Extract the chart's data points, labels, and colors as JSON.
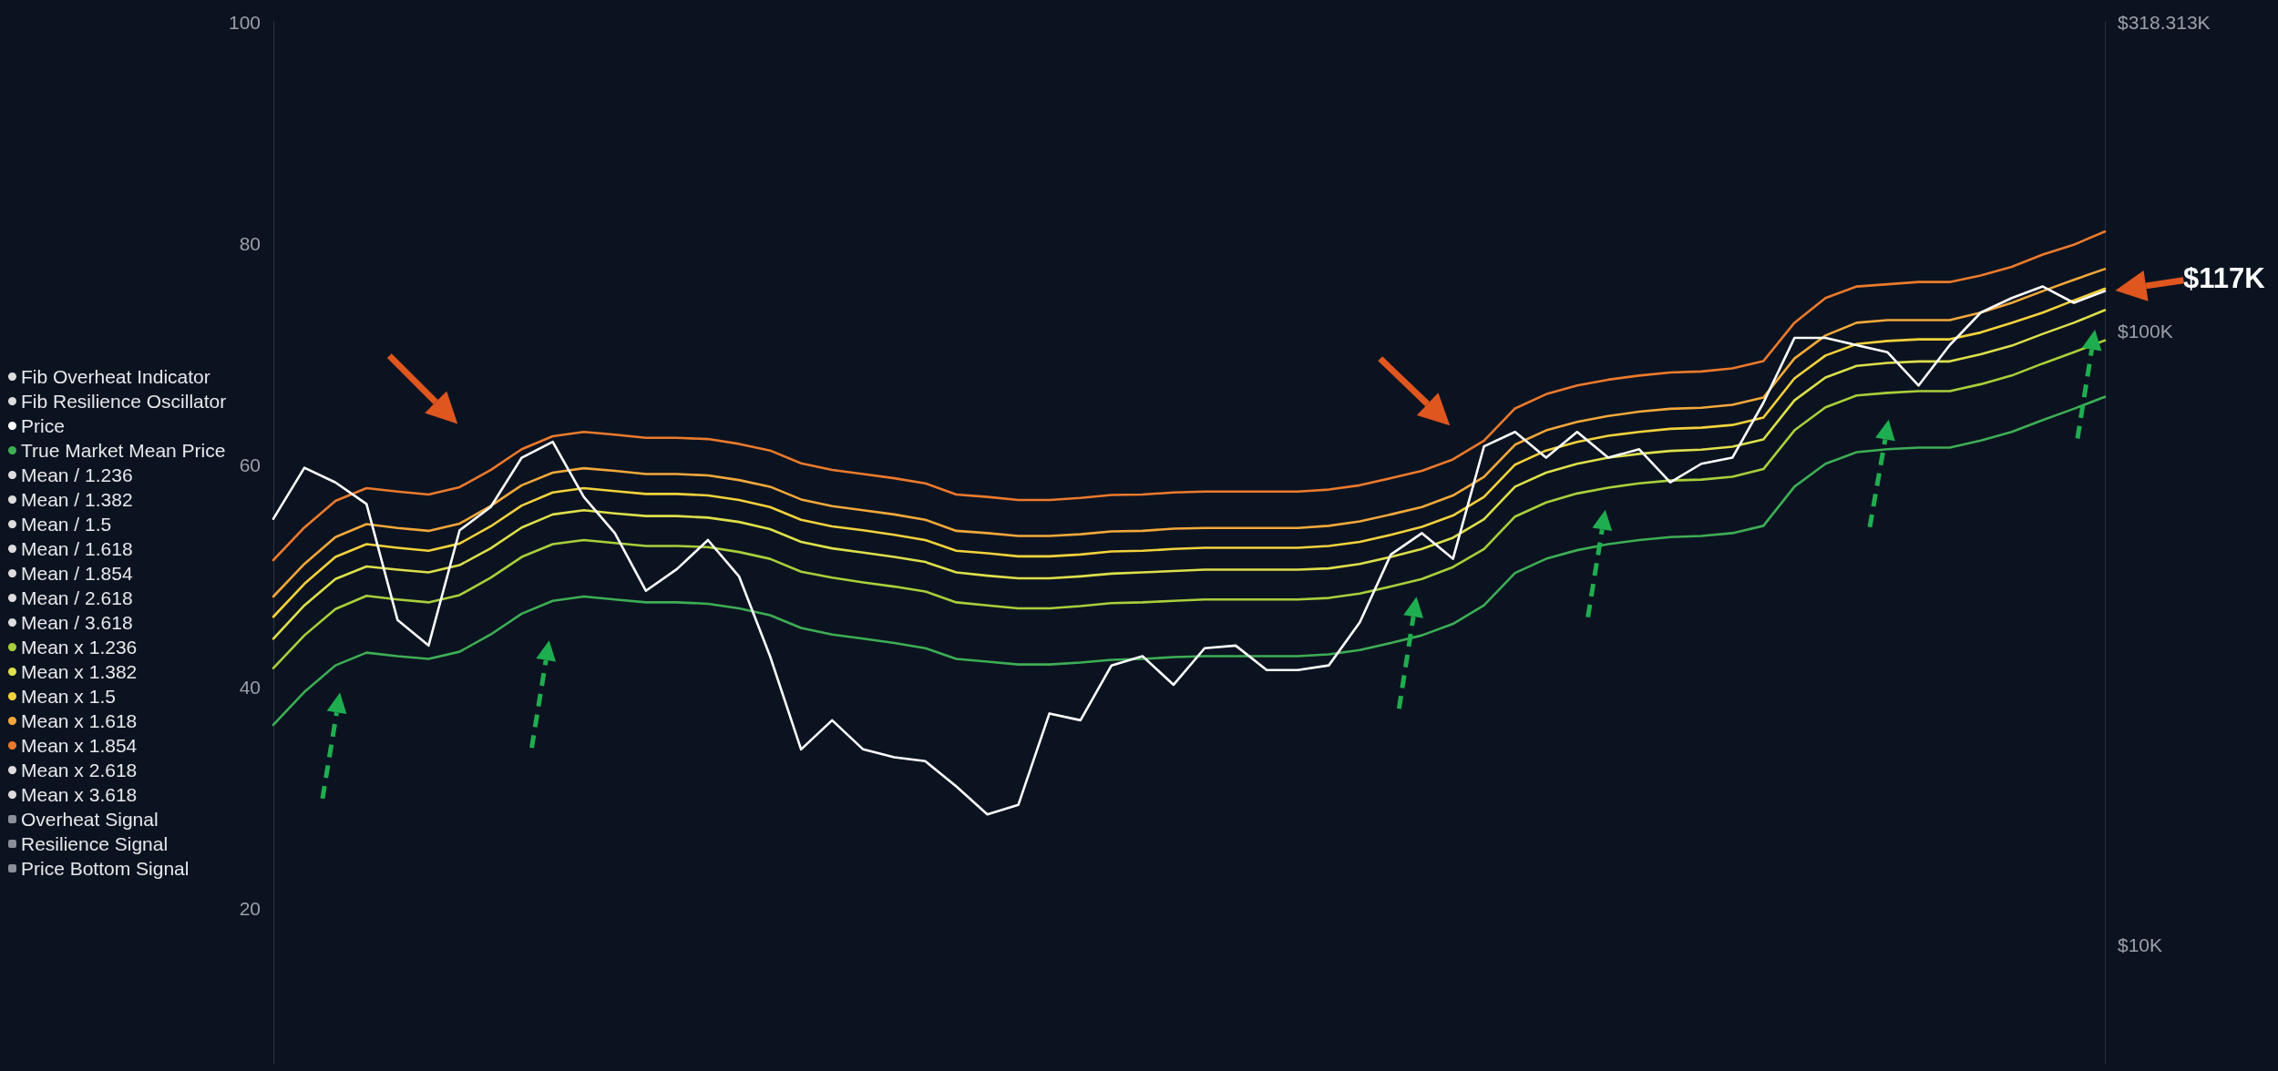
{
  "chart_data": {
    "type": "line",
    "categories": [
      null,
      null,
      null,
      null,
      null,
      null,
      null,
      null,
      null,
      null,
      null,
      null,
      null,
      null,
      null,
      null,
      null,
      null,
      null,
      null,
      null,
      null,
      null,
      null,
      null,
      null,
      null,
      null,
      null,
      null,
      null,
      null,
      null,
      null,
      null,
      null,
      null,
      null,
      null,
      null,
      null,
      null,
      null,
      null,
      null,
      null,
      null,
      null,
      null,
      null,
      null,
      null,
      null,
      null,
      null,
      null,
      null,
      null,
      null,
      null
    ],
    "ylim": [
      6,
      100
    ],
    "yticks": [
      20,
      40,
      60,
      80,
      100
    ],
    "y2lim": [
      6400,
      318313
    ],
    "y2ticks": [
      {
        "value": 10000,
        "label": "$10K"
      },
      {
        "value": 100000,
        "label": "$100K"
      },
      {
        "value": 318313,
        "label": "$318.313K"
      }
    ],
    "log": "y2",
    "legend": "left",
    "marker": "none",
    "line_style": "solid",
    "annotations": [
      "$117K"
    ],
    "series": [
      {
        "name": "Fib Overheat Indicator",
        "color": "#dddddd",
        "values": [
          null,
          null,
          null,
          null,
          null,
          null,
          null,
          null,
          null,
          null,
          null,
          null,
          null,
          null,
          null,
          null,
          null,
          null,
          null,
          null,
          null,
          null,
          null,
          null,
          null,
          null,
          null,
          null,
          null,
          null,
          null,
          null,
          null,
          null,
          null,
          null,
          null,
          null,
          null,
          null,
          null,
          null,
          null,
          null,
          null,
          null,
          null,
          null,
          null,
          null,
          null,
          null,
          null,
          null,
          null,
          null,
          null,
          null,
          null,
          null
        ]
      },
      {
        "name": "Fib Resilience Oscillator",
        "color": "#dddddd",
        "values": [
          null,
          null,
          null,
          null,
          null,
          null,
          null,
          null,
          null,
          null,
          null,
          null,
          null,
          null,
          null,
          null,
          null,
          null,
          null,
          null,
          null,
          null,
          null,
          null,
          null,
          null,
          null,
          null,
          null,
          null,
          null,
          null,
          null,
          null,
          null,
          null,
          null,
          null,
          null,
          null,
          null,
          null,
          null,
          null,
          null,
          null,
          null,
          null,
          null,
          null,
          null,
          null,
          null,
          null,
          null,
          null,
          null,
          null,
          null,
          null
        ]
      },
      {
        "name": "Price",
        "color": "#ffffff",
        "axis": "y2",
        "values": [
          49400,
          59800,
          56600,
          52200,
          33800,
          30700,
          47300,
          51600,
          62100,
          65900,
          53600,
          46800,
          37700,
          40900,
          45600,
          39800,
          29500,
          20800,
          23200,
          20800,
          20200,
          19900,
          18100,
          16300,
          16900,
          23800,
          23200,
          28500,
          29500,
          26500,
          30400,
          30700,
          28000,
          28000,
          28500,
          33500,
          43200,
          46800,
          42500,
          64800,
          68400,
          62100,
          68400,
          62100,
          64100,
          56600,
          60700,
          62100,
          76300,
          97300,
          97300,
          94700,
          92200,
          81400,
          94700,
          107000,
          113000,
          118000,
          111000,
          116000
        ]
      },
      {
        "name": "True Market Mean Price",
        "color": "#3dae55",
        "axis": "y2",
        "values": [
          22800,
          25800,
          28500,
          29900,
          29500,
          29200,
          30000,
          32000,
          34600,
          36300,
          36900,
          36500,
          36100,
          36100,
          35900,
          35300,
          34400,
          32800,
          32000,
          31500,
          31000,
          30400,
          29200,
          28900,
          28600,
          28600,
          28800,
          29100,
          29200,
          29400,
          29500,
          29500,
          29500,
          29500,
          29700,
          30200,
          31000,
          31900,
          33300,
          35700,
          40300,
          42500,
          43900,
          44900,
          45600,
          46100,
          46300,
          46800,
          48100,
          55700,
          60700,
          63400,
          64100,
          64500,
          64500,
          66200,
          68400,
          71500,
          74600,
          78000
        ]
      },
      {
        "name": "Mean / 1.236",
        "color": "#dddddd",
        "axis": "y2",
        "values": [
          null,
          null,
          null,
          null,
          null,
          null,
          null,
          null,
          null,
          null,
          null,
          null,
          null,
          null,
          null,
          null,
          null,
          null,
          null,
          null,
          null,
          null,
          null,
          null,
          null,
          null,
          null,
          null,
          null,
          null,
          null,
          null,
          null,
          null,
          null,
          null,
          null,
          null,
          null,
          null,
          null,
          null,
          null,
          null,
          null,
          null,
          null,
          null,
          null,
          null,
          null,
          null,
          null,
          null,
          null,
          null,
          null,
          null,
          null,
          null
        ]
      },
      {
        "name": "Mean / 1.382",
        "color": "#dddddd",
        "axis": "y2",
        "values": [
          null,
          null,
          null,
          null,
          null,
          null,
          null,
          null,
          null,
          null,
          null,
          null,
          null,
          null,
          null,
          null,
          null,
          null,
          null,
          null,
          null,
          null,
          null,
          null,
          null,
          null,
          null,
          null,
          null,
          null,
          null,
          null,
          null,
          null,
          null,
          null,
          null,
          null,
          null,
          null,
          null,
          null,
          null,
          null,
          null,
          null,
          null,
          null,
          null,
          null,
          null,
          null,
          null,
          null,
          null,
          null,
          null,
          null,
          null,
          null
        ]
      },
      {
        "name": "Mean / 1.5",
        "color": "#dddddd",
        "axis": "y2",
        "values": [
          null,
          null,
          null,
          null,
          null,
          null,
          null,
          null,
          null,
          null,
          null,
          null,
          null,
          null,
          null,
          null,
          null,
          null,
          null,
          null,
          null,
          null,
          null,
          null,
          null,
          null,
          null,
          null,
          null,
          null,
          null,
          null,
          null,
          null,
          null,
          null,
          null,
          null,
          null,
          null,
          null,
          null,
          null,
          null,
          null,
          null,
          null,
          null,
          null,
          null,
          null,
          null,
          null,
          null,
          null,
          null,
          null,
          null,
          null,
          null
        ]
      },
      {
        "name": "Mean / 1.618",
        "color": "#dddddd",
        "axis": "y2",
        "values": [
          null,
          null,
          null,
          null,
          null,
          null,
          null,
          null,
          null,
          null,
          null,
          null,
          null,
          null,
          null,
          null,
          null,
          null,
          null,
          null,
          null,
          null,
          null,
          null,
          null,
          null,
          null,
          null,
          null,
          null,
          null,
          null,
          null,
          null,
          null,
          null,
          null,
          null,
          null,
          null,
          null,
          null,
          null,
          null,
          null,
          null,
          null,
          null,
          null,
          null,
          null,
          null,
          null,
          null,
          null,
          null,
          null,
          null,
          null,
          null
        ]
      },
      {
        "name": "Mean / 1.854",
        "color": "#dddddd",
        "axis": "y2",
        "values": [
          null,
          null,
          null,
          null,
          null,
          null,
          null,
          null,
          null,
          null,
          null,
          null,
          null,
          null,
          null,
          null,
          null,
          null,
          null,
          null,
          null,
          null,
          null,
          null,
          null,
          null,
          null,
          null,
          null,
          null,
          null,
          null,
          null,
          null,
          null,
          null,
          null,
          null,
          null,
          null,
          null,
          null,
          null,
          null,
          null,
          null,
          null,
          null,
          null,
          null,
          null,
          null,
          null,
          null,
          null,
          null,
          null,
          null,
          null,
          null
        ]
      },
      {
        "name": "Mean / 2.618",
        "color": "#dddddd",
        "axis": "y2",
        "values": [
          null,
          null,
          null,
          null,
          null,
          null,
          null,
          null,
          null,
          null,
          null,
          null,
          null,
          null,
          null,
          null,
          null,
          null,
          null,
          null,
          null,
          null,
          null,
          null,
          null,
          null,
          null,
          null,
          null,
          null,
          null,
          null,
          null,
          null,
          null,
          null,
          null,
          null,
          null,
          null,
          null,
          null,
          null,
          null,
          null,
          null,
          null,
          null,
          null,
          null,
          null,
          null,
          null,
          null,
          null,
          null,
          null,
          null,
          null,
          null
        ]
      },
      {
        "name": "Mean / 3.618",
        "color": "#dddddd",
        "axis": "y2",
        "values": [
          null,
          null,
          null,
          null,
          null,
          null,
          null,
          null,
          null,
          null,
          null,
          null,
          null,
          null,
          null,
          null,
          null,
          null,
          null,
          null,
          null,
          null,
          null,
          null,
          null,
          null,
          null,
          null,
          null,
          null,
          null,
          null,
          null,
          null,
          null,
          null,
          null,
          null,
          null,
          null,
          null,
          null,
          null,
          null,
          null,
          null,
          null,
          null,
          null,
          null,
          null,
          null,
          null,
          null,
          null,
          null,
          null,
          null,
          null,
          null
        ]
      },
      {
        "name": "Mean x 1.236",
        "color": "#a9cf3b",
        "axis": "y2",
        "values": [
          28200,
          31900,
          35200,
          37000,
          36500,
          36100,
          37100,
          39600,
          42800,
          44900,
          45600,
          45100,
          44600,
          44600,
          44400,
          43600,
          42500,
          40500,
          39600,
          38900,
          38300,
          37600,
          36100,
          35700,
          35300,
          35300,
          35600,
          36000,
          36100,
          36300,
          36500,
          36500,
          36500,
          36500,
          36700,
          37300,
          38300,
          39400,
          41200,
          44100,
          49800,
          52500,
          54300,
          55500,
          56400,
          57000,
          57200,
          57800,
          59500,
          68800,
          75000,
          78400,
          79200,
          79700,
          79700,
          81800,
          84500,
          88400,
          92200,
          96400
        ]
      },
      {
        "name": "Mean x 1.382",
        "color": "#dde04a",
        "axis": "y2",
        "values": [
          31500,
          35700,
          39400,
          41300,
          40800,
          40400,
          41500,
          44200,
          47800,
          50200,
          51000,
          50400,
          49900,
          49900,
          49600,
          48800,
          47500,
          45300,
          44200,
          43500,
          42800,
          42000,
          40400,
          39900,
          39500,
          39500,
          39800,
          40200,
          40400,
          40600,
          40800,
          40800,
          40800,
          40800,
          41000,
          41700,
          42800,
          44100,
          46000,
          49300,
          55700,
          58700,
          60700,
          62100,
          63000,
          63700,
          64000,
          64700,
          66500,
          77000,
          83900,
          87600,
          88600,
          89100,
          89100,
          91500,
          94500,
          98800,
          103000,
          108000
        ]
      },
      {
        "name": "Mean x 1.5",
        "color": "#f3d23c",
        "axis": "y2",
        "values": [
          34200,
          38700,
          42800,
          44900,
          44300,
          43800,
          45000,
          48000,
          51900,
          54500,
          55400,
          54800,
          54200,
          54200,
          53900,
          53000,
          51600,
          49200,
          48000,
          47300,
          46500,
          45600,
          43800,
          43400,
          42900,
          42900,
          43200,
          43700,
          43800,
          44100,
          44300,
          44300,
          44300,
          44300,
          44600,
          45300,
          46500,
          47900,
          50000,
          53600,
          60500,
          63800,
          65900,
          67400,
          68400,
          69200,
          69500,
          70200,
          72200,
          83600,
          91100,
          95100,
          96200,
          96800,
          96800,
          99300,
          103000,
          107000,
          112000,
          117000
        ]
      },
      {
        "name": "Mean x 1.618",
        "color": "#f2a83a",
        "axis": "y2",
        "values": [
          36900,
          41700,
          46100,
          48400,
          47700,
          47200,
          48500,
          51800,
          56000,
          58700,
          59700,
          59100,
          58400,
          58400,
          58100,
          57100,
          55700,
          53100,
          51800,
          51000,
          50200,
          49200,
          47200,
          46800,
          46300,
          46300,
          46600,
          47100,
          47200,
          47600,
          47700,
          47700,
          47700,
          47700,
          48100,
          48900,
          50200,
          51600,
          53900,
          57800,
          65200,
          68800,
          71000,
          72600,
          73800,
          74600,
          74900,
          75700,
          77800,
          90100,
          98200,
          103000,
          104000,
          104000,
          104000,
          107000,
          111000,
          116000,
          121000,
          126000
        ]
      },
      {
        "name": "Mean x 1.854",
        "color": "#ec7a2c",
        "axis": "y2",
        "values": [
          42300,
          47800,
          52800,
          55400,
          54700,
          54100,
          55600,
          59300,
          64100,
          67300,
          68400,
          67700,
          66900,
          66900,
          66600,
          65400,
          63800,
          60800,
          59300,
          58400,
          57500,
          56400,
          54100,
          53600,
          53000,
          53000,
          53400,
          54000,
          54100,
          54500,
          54700,
          54700,
          54700,
          54700,
          55100,
          56000,
          57500,
          59100,
          61700,
          66200,
          74700,
          78800,
          81400,
          83200,
          84500,
          85500,
          85800,
          86800,
          89200,
          103000,
          113000,
          118000,
          119000,
          120000,
          120000,
          123000,
          127000,
          133000,
          138000,
          145000
        ]
      },
      {
        "name": "Mean x 2.618",
        "color": "#dddddd",
        "axis": "y2",
        "values": [
          null,
          null,
          null,
          null,
          null,
          null,
          null,
          null,
          null,
          null,
          null,
          null,
          null,
          null,
          null,
          null,
          null,
          null,
          null,
          null,
          null,
          null,
          null,
          null,
          null,
          null,
          null,
          null,
          null,
          null,
          null,
          null,
          null,
          null,
          null,
          null,
          null,
          null,
          null,
          null,
          null,
          null,
          null,
          null,
          null,
          null,
          null,
          null,
          null,
          null,
          null,
          null,
          null,
          null,
          null,
          null,
          null,
          null,
          null,
          null
        ]
      },
      {
        "name": "Mean x 3.618",
        "color": "#dddddd",
        "axis": "y2",
        "values": [
          null,
          null,
          null,
          null,
          null,
          null,
          null,
          null,
          null,
          null,
          null,
          null,
          null,
          null,
          null,
          null,
          null,
          null,
          null,
          null,
          null,
          null,
          null,
          null,
          null,
          null,
          null,
          null,
          null,
          null,
          null,
          null,
          null,
          null,
          null,
          null,
          null,
          null,
          null,
          null,
          null,
          null,
          null,
          null,
          null,
          null,
          null,
          null,
          null,
          null,
          null,
          null,
          null,
          null,
          null,
          null,
          null,
          null,
          null,
          null
        ]
      },
      {
        "name": "Overheat Signal",
        "type": "bar",
        "color": "#8a8f99",
        "values": [
          null,
          null,
          null,
          null,
          null,
          null,
          null,
          null,
          null,
          null,
          null,
          null,
          null,
          null,
          null,
          null,
          null,
          null,
          null,
          null,
          null,
          null,
          null,
          null,
          null,
          null,
          null,
          null,
          null,
          null,
          null,
          null,
          null,
          null,
          null,
          null,
          null,
          null,
          null,
          null,
          null,
          null,
          null,
          null,
          null,
          null,
          null,
          null,
          null,
          null,
          null,
          null,
          null,
          null,
          null,
          null,
          null,
          null,
          null,
          null
        ]
      },
      {
        "name": "Resilience Signal",
        "type": "bar",
        "color": "#8a8f99",
        "values": [
          null,
          null,
          null,
          null,
          null,
          null,
          null,
          null,
          null,
          null,
          null,
          null,
          null,
          null,
          null,
          null,
          null,
          null,
          null,
          null,
          null,
          null,
          null,
          null,
          null,
          null,
          null,
          null,
          null,
          null,
          null,
          null,
          null,
          null,
          null,
          null,
          null,
          null,
          null,
          null,
          null,
          null,
          null,
          null,
          null,
          null,
          null,
          null,
          null,
          null,
          null,
          null,
          null,
          null,
          null,
          null,
          null,
          null,
          null,
          null
        ]
      },
      {
        "name": "Price Bottom Signal",
        "type": "bar",
        "color": "#8a8f99",
        "values": [
          null,
          null,
          null,
          null,
          null,
          null,
          null,
          null,
          null,
          null,
          null,
          null,
          null,
          null,
          null,
          null,
          null,
          null,
          null,
          null,
          null,
          null,
          null,
          null,
          null,
          null,
          null,
          null,
          null,
          null,
          null,
          null,
          null,
          null,
          null,
          null,
          null,
          null,
          null,
          null,
          null,
          null,
          null,
          null,
          null,
          null,
          null,
          null,
          null,
          null,
          null,
          null,
          null,
          null,
          null,
          null,
          null,
          null,
          null,
          null
        ]
      }
    ]
  }
}
